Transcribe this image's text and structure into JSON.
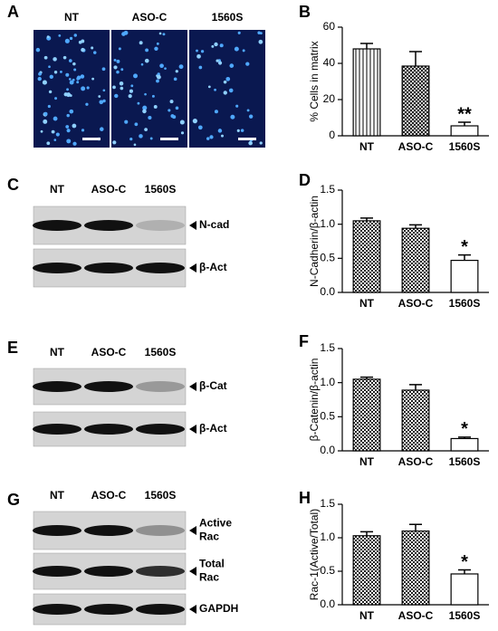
{
  "panel_labels": {
    "A": "A",
    "C": "C",
    "E": "E",
    "G": "G"
  },
  "microscopy": {
    "labels": [
      "NT",
      "ASO-C",
      "1560S"
    ]
  },
  "blots": [
    {
      "lanes": [
        "NT",
        "ASO-C",
        "1560S"
      ],
      "rows": [
        {
          "lines": [
            "N-cad"
          ]
        },
        {
          "lines": [
            "β-Act"
          ]
        }
      ]
    },
    {
      "lanes": [
        "NT",
        "ASO-C",
        "1560S"
      ],
      "rows": [
        {
          "lines": [
            "β-Cat"
          ]
        },
        {
          "lines": [
            "β-Act"
          ]
        }
      ]
    },
    {
      "lanes": [
        "NT",
        "ASO-C",
        "1560S"
      ],
      "rows": [
        {
          "lines": [
            "Active",
            "Rac"
          ]
        },
        {
          "lines": [
            "Total",
            "Rac"
          ]
        },
        {
          "lines": [
            "GAPDH"
          ]
        }
      ]
    }
  ],
  "chart_data": [
    {
      "type": "bar",
      "panel": "B",
      "ylabel": "% Cells in matrix",
      "categories": [
        "NT",
        "ASO-C",
        "1560S"
      ],
      "values": [
        48,
        38.5,
        5.5
      ],
      "errors": [
        3,
        8,
        2
      ],
      "patterns": [
        "vertical-stripes",
        "crosshatch",
        "none"
      ],
      "annotation": "**",
      "annotation_category": "1560S",
      "ylim": [
        0,
        60
      ],
      "yticks": [
        0,
        20,
        40,
        60
      ]
    },
    {
      "type": "bar",
      "panel": "D",
      "ylabel": "N-Cadherin/β-actin",
      "categories": [
        "NT",
        "ASO-C",
        "1560S"
      ],
      "values": [
        1.05,
        0.94,
        0.47
      ],
      "errors": [
        0.04,
        0.05,
        0.08
      ],
      "patterns": [
        "checker",
        "checker",
        "none"
      ],
      "annotation": "*",
      "annotation_category": "1560S",
      "ylim": [
        0,
        1.5
      ],
      "yticks": [
        {
          "value": 0,
          "label": "0.0"
        },
        0.5,
        {
          "value": 1,
          "label": "1.0"
        },
        1.5
      ]
    },
    {
      "type": "bar",
      "panel": "F",
      "ylabel": "β-Catenin/β-actin",
      "categories": [
        "NT",
        "ASO-C",
        "1560S"
      ],
      "values": [
        1.05,
        0.89,
        0.18
      ],
      "errors": [
        0.03,
        0.08,
        0.02
      ],
      "patterns": [
        "checker",
        "checker",
        "none"
      ],
      "annotation": "*",
      "annotation_category": "1560S",
      "ylim": [
        0,
        1.5
      ],
      "yticks": [
        {
          "value": 0,
          "label": "0.0"
        },
        0.5,
        {
          "value": 1,
          "label": "1.0"
        },
        1.5
      ]
    },
    {
      "type": "bar",
      "panel": "H",
      "ylabel": "Rac-1(Active/Total)",
      "categories": [
        "NT",
        "ASO-C",
        "1560S"
      ],
      "values": [
        1.03,
        1.1,
        0.46
      ],
      "errors": [
        0.06,
        0.1,
        0.06
      ],
      "patterns": [
        "checker",
        "checker",
        "none"
      ],
      "annotation": "*",
      "annotation_category": "1560S",
      "ylim": [
        0,
        1.5
      ],
      "yticks": [
        {
          "value": 0,
          "label": "0.0"
        },
        0.5,
        {
          "value": 1,
          "label": "1.0"
        },
        1.5
      ]
    }
  ]
}
